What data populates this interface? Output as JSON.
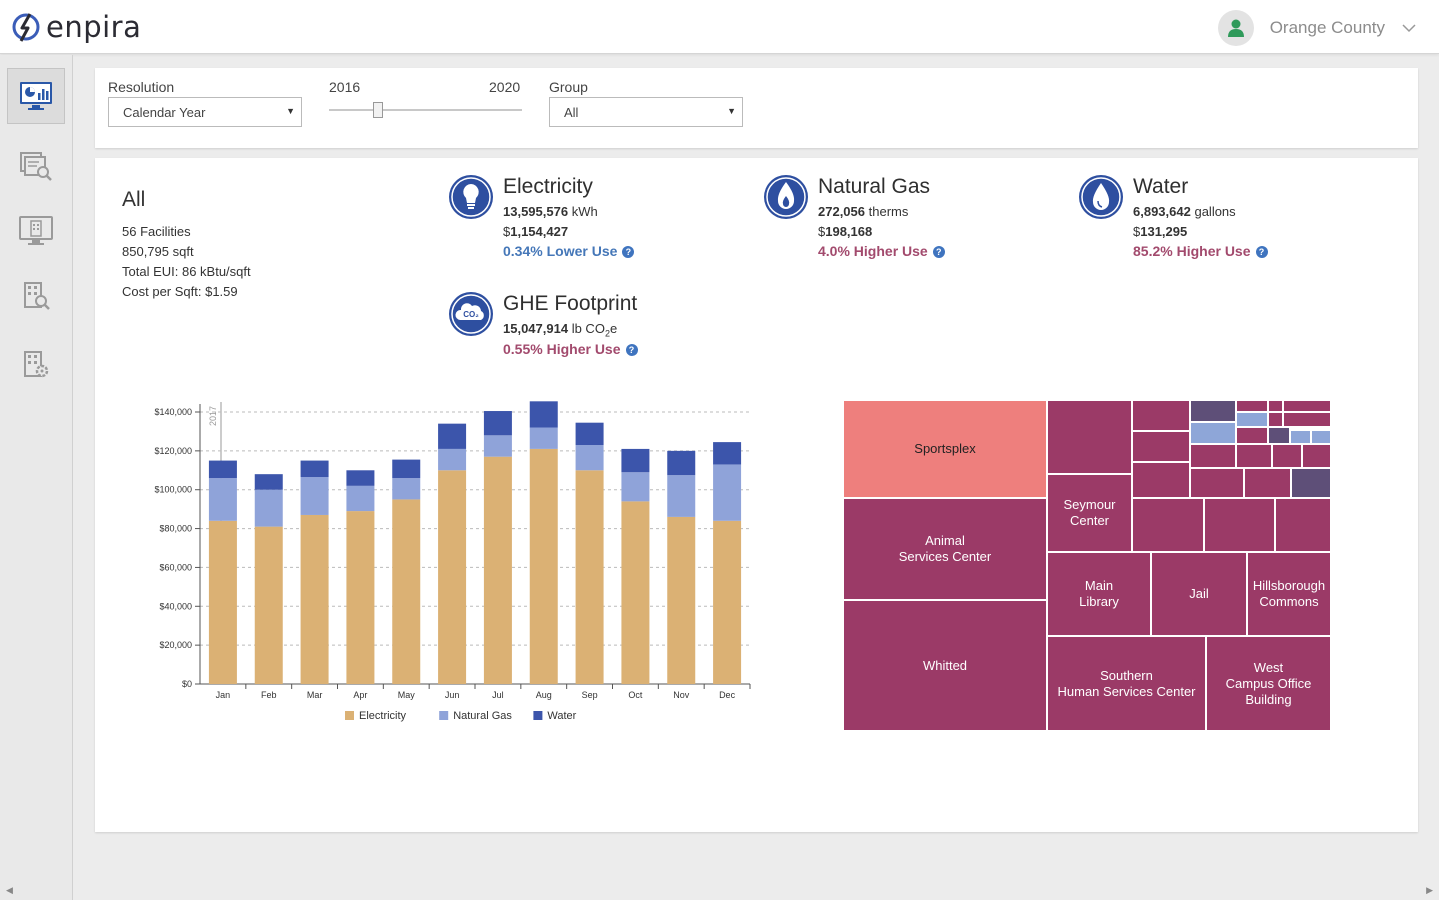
{
  "app": {
    "name": "enpira"
  },
  "user": {
    "org": "Orange County"
  },
  "sidebar": {
    "items": [
      {
        "name": "dashboard",
        "active": true
      },
      {
        "name": "reports",
        "active": false
      },
      {
        "name": "facilities",
        "active": false
      },
      {
        "name": "facility-search",
        "active": false
      },
      {
        "name": "facility-settings",
        "active": false
      }
    ]
  },
  "filters": {
    "resolution_label": "Resolution",
    "resolution_value": "Calendar Year",
    "slider_start": "2016",
    "slider_end": "2020",
    "group_label": "Group",
    "group_value": "All"
  },
  "summary": {
    "title": "All",
    "facilities": "56 Facilities",
    "area": "850,795 sqft",
    "eui": "Total EUI: 86 kBtu/sqft",
    "cost_per_sqft": "Cost per Sqft: $1.59"
  },
  "metrics": {
    "electricity": {
      "title": "Electricity",
      "usage": "13,595,576",
      "unit": "kWh",
      "cost_sym": "$",
      "cost": "1,154,427",
      "change": "0.34% Lower Use"
    },
    "gas": {
      "title": "Natural Gas",
      "usage": "272,056",
      "unit": "therms",
      "cost_sym": "$",
      "cost": "198,168",
      "change": "4.0% Higher Use"
    },
    "water": {
      "title": "Water",
      "usage": "6,893,642",
      "unit": "gallons",
      "cost_sym": "$",
      "cost": "131,295",
      "change": "85.2% Higher Use"
    },
    "ghe": {
      "title": "GHE Footprint",
      "usage": "15,047,914",
      "unit_pre": "lb CO",
      "unit_sub": "2",
      "unit_post": "e",
      "change": "0.55% Higher Use"
    }
  },
  "colors": {
    "electricity": "#dbb174",
    "gas": "#8fa3d9",
    "water": "#3c55ab",
    "treemap_main": "#9b3a67",
    "treemap_highlight": "#ee7f7d"
  },
  "chart_data": {
    "type": "bar",
    "stacked": true,
    "categories": [
      "Jan",
      "Feb",
      "Mar",
      "Apr",
      "May",
      "Jun",
      "Jul",
      "Aug",
      "Sep",
      "Oct",
      "Nov",
      "Dec"
    ],
    "series": [
      {
        "name": "Electricity",
        "values": [
          84000,
          81000,
          87000,
          89000,
          95000,
          110000,
          117000,
          121000,
          110000,
          94000,
          86000,
          84000
        ]
      },
      {
        "name": "Natural Gas",
        "values": [
          22000,
          19000,
          19500,
          13000,
          11000,
          11000,
          11000,
          11000,
          13000,
          15000,
          21500,
          29000
        ]
      },
      {
        "name": "Water",
        "values": [
          9000,
          8000,
          8500,
          8000,
          9500,
          13000,
          12500,
          13500,
          11500,
          12000,
          12500,
          11500
        ]
      }
    ],
    "yticks": [
      "$0",
      "$20,000",
      "$40,000",
      "$60,000",
      "$80,000",
      "$100,000",
      "$120,000",
      "$140,000"
    ],
    "ylim": [
      0,
      140000
    ],
    "marker_label": "2017",
    "grid": true,
    "legend": "bottom"
  },
  "treemap": {
    "cells": [
      {
        "label": "Sportsplex",
        "highlight": true
      },
      {
        "label": "Animal\nServices Center"
      },
      {
        "label": "Whitted"
      },
      {
        "label": "Seymour\nCenter"
      },
      {
        "label": "Main\nLibrary"
      },
      {
        "label": "Jail"
      },
      {
        "label": "Hillsborough\nCommons"
      },
      {
        "label": "Southern\nHuman Services Center"
      },
      {
        "label": "West\nCampus Office Building"
      }
    ]
  }
}
